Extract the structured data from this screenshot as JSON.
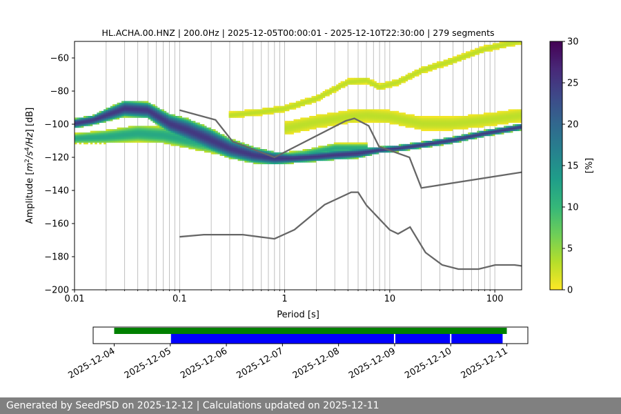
{
  "chart_data": [
    {
      "type": "heatmap",
      "title": "HL.ACHA.00.HNZ | 200.0Hz | 2025-12-05T00:00:01 - 2025-12-10T22:30:00 | 279 segments",
      "xlabel": "Period [s]",
      "ylabel_parts": [
        "Amplitude [",
        "m",
        "2",
        "/",
        "s",
        "4",
        "/",
        "Hz",
        "] [dB]"
      ],
      "x_scale": "log",
      "xlim": [
        0.01,
        180
      ],
      "ylim": [
        -200,
        -50
      ],
      "x_ticks": [
        0.01,
        0.1,
        1,
        10,
        100
      ],
      "x_tick_labels": [
        "0.01",
        "0.1",
        "1",
        "10",
        "100"
      ],
      "y_ticks": [
        -200,
        -180,
        -160,
        -140,
        -120,
        -100,
        -80,
        -60
      ],
      "y_tick_labels": [
        "−200",
        "−180",
        "−160",
        "−140",
        "−120",
        "−100",
        "−80",
        "−60"
      ],
      "grid": "vertical",
      "colorbar": {
        "label": "[%]",
        "range": [
          0,
          30
        ],
        "ticks": [
          0,
          5,
          10,
          15,
          20,
          25,
          30
        ],
        "tick_labels": [
          "0",
          "5",
          "10",
          "15",
          "20",
          "25",
          "30"
        ],
        "colors": [
          "#fde725",
          "#b5de2b",
          "#6ece58",
          "#35b779",
          "#1f9e89",
          "#26828e",
          "#31688e",
          "#3e4989",
          "#482878",
          "#440154"
        ]
      },
      "density_bands": [
        {
          "name": "main",
          "x": [
            0.01,
            0.015,
            0.02,
            0.03,
            0.05,
            0.08,
            0.12,
            0.2,
            0.3,
            0.5,
            0.8,
            1.2,
            2,
            3,
            5,
            8,
            12,
            20,
            40,
            80,
            120,
            180
          ],
          "center": [
            -100,
            -98,
            -95,
            -91,
            -92,
            -100,
            -104,
            -110,
            -115,
            -119,
            -121,
            -121,
            -120,
            -119,
            -118,
            -116,
            -115,
            -113,
            -110,
            -106,
            -104,
            -102
          ],
          "halfwidth": [
            3,
            3,
            4,
            5,
            5,
            6,
            7,
            7,
            6,
            5,
            4,
            3,
            3,
            3,
            3,
            2,
            2,
            2,
            2,
            2,
            2,
            2
          ],
          "peak": 25
        },
        {
          "name": "lower",
          "x": [
            0.01,
            0.02,
            0.04,
            0.07,
            0.1,
            0.2,
            0.4,
            0.8,
            1.5,
            3,
            6
          ],
          "center": [
            -109,
            -108,
            -106,
            -107,
            -109,
            -113,
            -118,
            -121,
            -119,
            -115,
            -115
          ],
          "halfwidth": [
            3,
            4,
            5,
            5,
            5,
            5,
            4,
            3,
            3,
            3,
            3
          ],
          "peak": 12
        },
        {
          "name": "upper",
          "x": [
            0.3,
            0.6,
            1,
            2,
            4,
            6,
            8,
            12,
            20,
            40,
            80,
            180
          ],
          "center": [
            -95,
            -93,
            -91,
            -85,
            -75,
            -74,
            -78,
            -75,
            -68,
            -62,
            -55,
            -50
          ],
          "halfwidth": [
            2,
            2,
            2,
            2,
            2,
            2,
            2,
            2,
            2,
            2,
            2,
            2
          ],
          "peak": 3
        },
        {
          "name": "mid",
          "x": [
            1,
            2,
            4,
            6,
            10,
            20,
            40,
            80,
            180
          ],
          "center": [
            -103,
            -99,
            -96,
            -95,
            -96,
            -100,
            -100,
            -98,
            -95
          ],
          "halfwidth": [
            4,
            4,
            4,
            4,
            4,
            4,
            4,
            4,
            4
          ],
          "peak": 3
        }
      ],
      "noise_models": [
        {
          "name": "NHNM",
          "x": [
            0.1,
            0.22,
            0.32,
            0.8,
            3.8,
            4.6,
            6.3,
            7.9,
            15.4,
            20,
            180
          ],
          "y": [
            -91.5,
            -97.4,
            -110.5,
            -120,
            -98,
            -96.5,
            -101,
            -113.5,
            -120,
            -138.5,
            -129
          ]
        },
        {
          "name": "NLNM",
          "x": [
            0.1,
            0.17,
            0.4,
            0.8,
            1.24,
            2.4,
            4.3,
            5,
            6,
            10,
            12,
            15.6,
            21.9,
            31.6,
            45,
            70,
            101,
            154,
            180
          ],
          "y": [
            -168,
            -166.7,
            -166.7,
            -169.2,
            -163.7,
            -148.6,
            -141.1,
            -141.1,
            -149,
            -163.8,
            -166.2,
            -162.1,
            -177.5,
            -185,
            -187.5,
            -187.5,
            -185,
            -185,
            -185.6
          ]
        }
      ]
    },
    {
      "type": "timeline",
      "x_ticks": [
        "2025-12-04",
        "2025-12-05",
        "2025-12-06",
        "2025-12-07",
        "2025-12-08",
        "2025-12-09",
        "2025-12-10",
        "2025-12-11"
      ],
      "range": [
        "2025-12-03T15:00",
        "2025-12-11T09:00"
      ],
      "data_span": {
        "start": "2025-12-04",
        "end": "2025-12-11",
        "color": "#008000"
      },
      "segments": [
        {
          "start": "2025-12-05T00:00",
          "end": "2025-12-09T00:00",
          "color": "#0000ff"
        },
        {
          "start": "2025-12-09T00:00",
          "end": "2025-12-10T00:00",
          "color": "#0000ff"
        },
        {
          "start": "2025-12-10T00:00",
          "end": "2025-12-10T22:30",
          "color": "#0000ff"
        }
      ]
    }
  ],
  "footer": {
    "text": "Generated by SeedPSD on 2025-12-12 | Calculations updated on 2025-12-11"
  }
}
